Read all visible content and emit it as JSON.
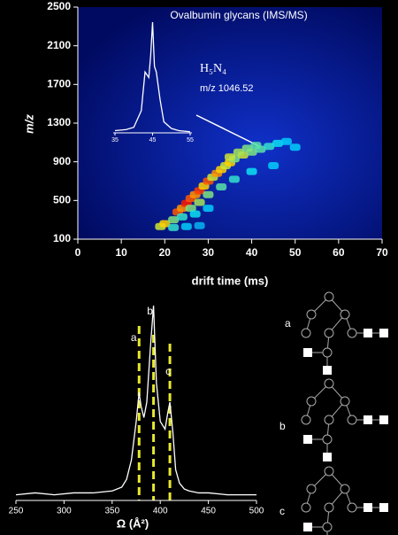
{
  "chart_data": [
    {
      "type": "heatmap",
      "title": "Ovalbumin glycans (IMS/MS)",
      "x_label": "drift time (ms)",
      "y_label": "m/z",
      "annotation": "H₅N₄",
      "annotation_2": "m/z 1046.52",
      "xlim": [
        0,
        70
      ],
      "xticks": [
        0,
        10,
        20,
        30,
        40,
        50,
        60,
        70
      ],
      "ylim": [
        100,
        2500
      ],
      "yticks": [
        100,
        500,
        900,
        1300,
        1700,
        2100,
        2500
      ],
      "colormap": [
        "#0a2fd0",
        "#00e0ff",
        "#ffe600",
        "#ff1a00"
      ],
      "x": [
        19,
        20,
        22,
        23,
        24,
        25,
        26,
        27,
        28,
        29,
        30,
        31,
        32,
        33,
        34,
        35,
        36,
        38,
        40,
        42,
        44,
        46,
        48,
        26,
        28,
        30,
        33,
        36,
        40,
        24,
        27,
        30,
        22,
        25,
        28,
        45,
        50,
        35,
        37,
        39,
        41
      ],
      "y": [
        230,
        260,
        300,
        380,
        420,
        470,
        520,
        560,
        600,
        650,
        700,
        740,
        780,
        820,
        860,
        890,
        930,
        970,
        1000,
        1030,
        1060,
        1090,
        1110,
        420,
        480,
        560,
        640,
        720,
        800,
        330,
        360,
        420,
        220,
        230,
        240,
        860,
        1050,
        950,
        1000,
        1040,
        1070
      ],
      "values": [
        0.6,
        0.7,
        0.5,
        0.9,
        0.8,
        1.0,
        0.9,
        0.8,
        0.95,
        0.7,
        0.9,
        0.6,
        0.8,
        0.7,
        0.6,
        0.7,
        0.5,
        0.6,
        0.5,
        0.45,
        0.4,
        0.35,
        0.3,
        0.5,
        0.55,
        0.5,
        0.45,
        0.4,
        0.35,
        0.4,
        0.35,
        0.3,
        0.4,
        0.3,
        0.25,
        0.3,
        0.3,
        0.6,
        0.55,
        0.5,
        0.45
      ]
    },
    {
      "type": "line",
      "color": "#ffffff",
      "xlim": [
        35,
        55
      ],
      "xticks": [
        35,
        45,
        55
      ],
      "ylim": [
        0,
        1
      ],
      "x": [
        35,
        38,
        40,
        42,
        43,
        44,
        44.5,
        45,
        45.5,
        46,
        47,
        48,
        50,
        52,
        55
      ],
      "values": [
        0.02,
        0.03,
        0.05,
        0.2,
        0.55,
        0.5,
        0.7,
        1.0,
        0.6,
        0.55,
        0.3,
        0.1,
        0.04,
        0.02,
        0.01
      ]
    },
    {
      "type": "spectrum",
      "color": "#ffffff",
      "x_label": "Ω (Å²)",
      "xlim": [
        250,
        500
      ],
      "xticks": [
        250,
        300,
        350,
        400,
        450,
        500
      ],
      "ylim": [
        0,
        1
      ],
      "x": [
        250,
        270,
        290,
        310,
        330,
        350,
        360,
        365,
        370,
        375,
        378,
        380,
        383,
        386,
        390,
        393,
        396,
        400,
        405,
        408,
        410,
        413,
        416,
        420,
        425,
        430,
        440,
        450,
        470,
        500
      ],
      "values": [
        0.02,
        0.03,
        0.02,
        0.03,
        0.03,
        0.04,
        0.06,
        0.1,
        0.2,
        0.4,
        0.55,
        0.48,
        0.42,
        0.5,
        0.8,
        1.0,
        0.6,
        0.4,
        0.36,
        0.45,
        0.5,
        0.35,
        0.15,
        0.08,
        0.05,
        0.04,
        0.03,
        0.03,
        0.02,
        0.02
      ],
      "markers": [
        378,
        393,
        410
      ],
      "marker_labels": [
        "a",
        "b",
        "c"
      ],
      "marker_color": "#e8e830"
    }
  ],
  "structures": [
    "a",
    "b",
    "c"
  ]
}
